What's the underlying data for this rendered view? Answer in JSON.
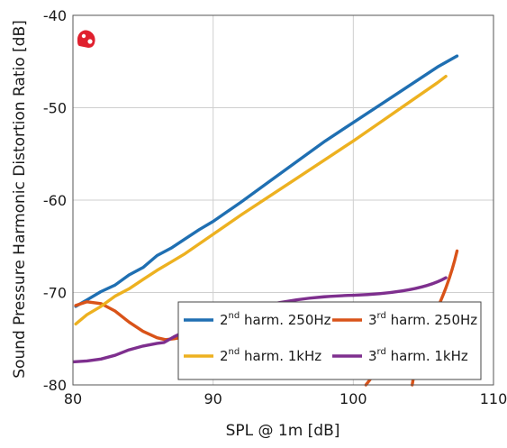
{
  "chart_data": {
    "type": "line",
    "xlabel": "SPL @ 1m [dB]",
    "ylabel": "Sound Pressure Harmonic Distortion Ratio [dB]",
    "xlim": [
      80,
      110
    ],
    "ylim": [
      -80,
      -40
    ],
    "xticks": [
      "80",
      "90",
      "100",
      "110"
    ],
    "yticks": [
      "-40",
      "-50",
      "-60",
      "-70",
      "-80"
    ],
    "grid": true,
    "legend_position": "bottom-right",
    "series": [
      {
        "name": "2nd harm. 250Hz",
        "base": "2",
        "sup": "nd",
        "rest": " harm. 250Hz",
        "color": "#1f6fb2",
        "x": [
          80.2,
          81,
          82,
          83,
          84,
          85,
          86,
          87,
          88,
          89,
          90,
          92,
          94,
          96,
          98,
          100,
          102,
          104,
          106,
          107.4
        ],
        "y": [
          -71.5,
          -70.8,
          -69.9,
          -69.2,
          -68.1,
          -67.3,
          -66.0,
          -65.2,
          -64.2,
          -63.2,
          -62.3,
          -60.2,
          -58.0,
          -55.8,
          -53.6,
          -51.6,
          -49.6,
          -47.6,
          -45.6,
          -44.4
        ]
      },
      {
        "name": "3rd harm. 250Hz",
        "base": "3",
        "sup": "rd",
        "rest": " harm. 250Hz",
        "color": "#d95319",
        "x": [
          80.2,
          81,
          82,
          83,
          84,
          85,
          86,
          86.6,
          87.2,
          88
        ],
        "y": [
          -71.4,
          -71.0,
          -71.2,
          -72.0,
          -73.2,
          -74.2,
          -74.9,
          -75.1,
          -75.0,
          -74.8
        ]
      },
      {
        "name": "2nd harm. 1kHz",
        "base": "2",
        "sup": "nd",
        "rest": " harm. 1kHz",
        "color": "#edb120",
        "x": [
          80.2,
          81,
          82,
          83,
          84,
          85,
          86,
          87,
          88,
          90,
          92,
          94,
          96,
          98,
          100,
          102,
          104,
          106,
          106.6
        ],
        "y": [
          -73.4,
          -72.4,
          -71.5,
          -70.4,
          -69.6,
          -68.6,
          -67.6,
          -66.7,
          -65.8,
          -63.7,
          -61.6,
          -59.6,
          -57.6,
          -55.6,
          -53.6,
          -51.5,
          -49.4,
          -47.3,
          -46.6
        ]
      },
      {
        "name": "3rd harm. 1kHz",
        "base": "3",
        "sup": "rd",
        "rest": " harm. 1kHz",
        "color": "#7e2f8e",
        "x": [
          80,
          81,
          82,
          83,
          84,
          85,
          86,
          86.5,
          87.2,
          88
        ],
        "y": [
          -77.5,
          -77.4,
          -77.2,
          -76.8,
          -76.2,
          -75.8,
          -75.5,
          -75.4,
          -74.8,
          -74.2
        ]
      }
    ],
    "colors": {
      "grid": "#cfcfcf",
      "axis": "#555555",
      "logo": "#e0202e"
    }
  }
}
